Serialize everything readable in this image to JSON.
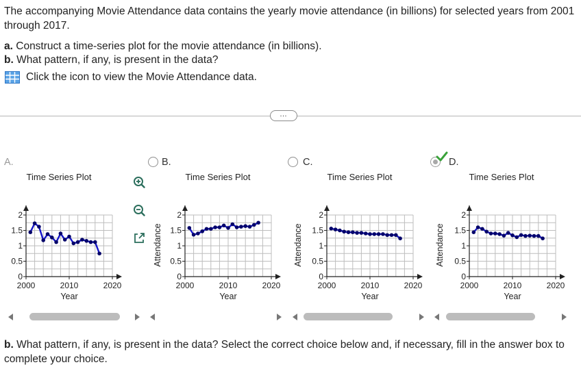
{
  "intro": "The accompanying Movie Attendance data contains the yearly movie attendance (in billions) for selected years from 2001 through 2017.",
  "part_a_label": "a.",
  "part_a_text": "Construct a time-series plot for the movie attendance (in billions).",
  "part_b_label": "b.",
  "part_b_text": "What pattern, if any, is present in the data?",
  "data_link_text": "Click the icon to view the Movie Attendance data.",
  "expand_label": "…",
  "options": [
    {
      "letter": "A.",
      "selected": false,
      "chart_data": {
        "type": "line",
        "title": "Time Series Plot",
        "xlabel": "Year",
        "ylabel": "",
        "xlim": [
          2000,
          2020
        ],
        "ylim": [
          0,
          2
        ],
        "x_ticks": [
          2000,
          2010,
          2020
        ],
        "y_ticks": [
          0,
          0.5,
          1,
          1.5,
          2
        ],
        "grid": true,
        "x": [
          2001,
          2002,
          2003,
          2004,
          2005,
          2006,
          2007,
          2008,
          2009,
          2010,
          2011,
          2012,
          2013,
          2014,
          2015,
          2016,
          2017
        ],
        "y": [
          1.44,
          1.73,
          1.62,
          1.18,
          1.38,
          1.27,
          1.12,
          1.4,
          1.2,
          1.3,
          1.08,
          1.12,
          1.2,
          1.16,
          1.12,
          1.12,
          0.75
        ]
      }
    },
    {
      "letter": "B.",
      "selected": false,
      "chart_data": {
        "type": "line",
        "title": "Time Series Plot",
        "xlabel": "Year",
        "ylabel": "Attendance",
        "xlim": [
          2000,
          2020
        ],
        "ylim": [
          0,
          2
        ],
        "x_ticks": [
          2000,
          2010,
          2020
        ],
        "y_ticks": [
          0,
          0.5,
          1,
          1.5,
          2
        ],
        "grid": true,
        "x": [
          2001,
          2002,
          2003,
          2004,
          2005,
          2006,
          2007,
          2008,
          2009,
          2010,
          2011,
          2012,
          2013,
          2014,
          2015,
          2016,
          2017
        ],
        "y": [
          1.58,
          1.36,
          1.4,
          1.47,
          1.55,
          1.55,
          1.6,
          1.6,
          1.66,
          1.58,
          1.7,
          1.6,
          1.62,
          1.64,
          1.62,
          1.68,
          1.75
        ]
      }
    },
    {
      "letter": "C.",
      "selected": false,
      "chart_data": {
        "type": "line",
        "title": "Time Series Plot",
        "xlabel": "Year",
        "ylabel": "Attendance",
        "xlim": [
          2000,
          2020
        ],
        "ylim": [
          0,
          2
        ],
        "x_ticks": [
          2000,
          2010,
          2020
        ],
        "y_ticks": [
          0,
          0.5,
          1,
          1.5,
          2
        ],
        "grid": true,
        "x": [
          2001,
          2002,
          2003,
          2004,
          2005,
          2006,
          2007,
          2008,
          2009,
          2010,
          2011,
          2012,
          2013,
          2014,
          2015,
          2016,
          2017
        ],
        "y": [
          1.56,
          1.53,
          1.5,
          1.46,
          1.44,
          1.44,
          1.42,
          1.42,
          1.4,
          1.38,
          1.38,
          1.38,
          1.38,
          1.35,
          1.35,
          1.35,
          1.24
        ]
      }
    },
    {
      "letter": "D.",
      "selected": true,
      "chart_data": {
        "type": "line",
        "title": "Time Series Plot",
        "xlabel": "Year",
        "ylabel": "Attendance",
        "xlim": [
          2000,
          2020
        ],
        "ylim": [
          0,
          2
        ],
        "x_ticks": [
          2000,
          2010,
          2020
        ],
        "y_ticks": [
          0,
          0.5,
          1,
          1.5,
          2
        ],
        "grid": true,
        "x": [
          2001,
          2002,
          2003,
          2004,
          2005,
          2006,
          2007,
          2008,
          2009,
          2010,
          2011,
          2012,
          2013,
          2014,
          2015,
          2016,
          2017
        ],
        "y": [
          1.44,
          1.6,
          1.55,
          1.46,
          1.4,
          1.4,
          1.38,
          1.33,
          1.42,
          1.34,
          1.28,
          1.35,
          1.32,
          1.33,
          1.32,
          1.32,
          1.24
        ]
      }
    }
  ],
  "part_b_prompt": "What pattern, if any, is present in the data? Select the correct choice below and, if necessary, fill in the answer box to complete your choice.",
  "colors": {
    "series": "#1515c8",
    "point": "#05056a",
    "grid": "#bdbdbd",
    "axis": "#222222",
    "check": "#3aa23a"
  },
  "icons": [
    "table-grid-icon",
    "zoom-in-icon",
    "zoom-out-icon",
    "open-external-icon",
    "checkmark-icon"
  ]
}
